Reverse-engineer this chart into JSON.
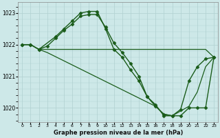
{
  "background_color": "#cde8e8",
  "grid_color": "#b0d0d0",
  "line_color": "#1a5c1a",
  "title": "Graphe pression niveau de la mer (hPa)",
  "xlim": [
    -0.5,
    23.5
  ],
  "ylim": [
    1019.55,
    1023.35
  ],
  "yticks": [
    1020,
    1021,
    1022,
    1023
  ],
  "xticks": [
    0,
    1,
    2,
    3,
    4,
    5,
    6,
    7,
    8,
    9,
    10,
    11,
    12,
    13,
    14,
    15,
    16,
    17,
    18,
    19,
    20,
    21,
    22,
    23
  ],
  "series": [
    {
      "x": [
        0,
        1,
        2,
        4,
        5,
        6,
        7,
        8,
        9,
        10,
        11,
        12,
        13,
        14,
        15,
        16,
        17,
        18,
        19,
        20,
        21,
        22,
        23
      ],
      "y": [
        1022.0,
        1022.0,
        1021.85,
        1022.25,
        1022.5,
        1022.75,
        1023.0,
        1023.05,
        1023.05,
        1022.5,
        1021.85,
        1021.6,
        1021.2,
        1020.85,
        1020.35,
        1020.05,
        1019.8,
        1019.75,
        1019.95,
        1020.85,
        1021.3,
        1021.55,
        1021.6
      ],
      "marker": "D",
      "markersize": 2.5,
      "linewidth": 1.0
    },
    {
      "x": [
        0,
        1,
        2,
        3,
        4,
        5,
        6,
        7,
        8,
        9,
        10,
        11,
        12,
        13,
        14,
        15,
        16,
        17,
        18,
        19,
        20,
        21,
        22,
        23
      ],
      "y": [
        1022.0,
        1022.0,
        1021.85,
        1021.95,
        1022.2,
        1022.45,
        1022.65,
        1022.9,
        1022.95,
        1022.95,
        1022.55,
        1022.05,
        1021.75,
        1021.4,
        1021.0,
        1020.35,
        1020.1,
        1019.75,
        1019.75,
        1019.75,
        1020.0,
        1020.0,
        1020.0,
        1021.6
      ],
      "marker": "D",
      "markersize": 2.5,
      "linewidth": 1.0
    },
    {
      "x": [
        0,
        1,
        2,
        3,
        4,
        5,
        6,
        7,
        8,
        9,
        10,
        11,
        12,
        13,
        14,
        15,
        16,
        17,
        18,
        19,
        20,
        21,
        22,
        23
      ],
      "y": [
        1022.0,
        1022.0,
        1021.85,
        1021.85,
        1021.85,
        1021.85,
        1021.85,
        1021.85,
        1021.85,
        1021.85,
        1021.85,
        1021.85,
        1021.85,
        1021.85,
        1021.85,
        1021.85,
        1021.85,
        1021.85,
        1021.85,
        1021.85,
        1021.85,
        1021.85,
        1021.85,
        1021.6
      ],
      "marker": null,
      "markersize": 0,
      "linewidth": 0.9
    },
    {
      "x": [
        2,
        3,
        16,
        17,
        18,
        19,
        20,
        21,
        22,
        23
      ],
      "y": [
        1021.85,
        1021.75,
        1020.05,
        1019.8,
        1019.75,
        1019.9,
        1020.05,
        1020.5,
        1021.3,
        1021.6
      ],
      "marker": null,
      "markersize": 0,
      "linewidth": 0.9
    }
  ]
}
